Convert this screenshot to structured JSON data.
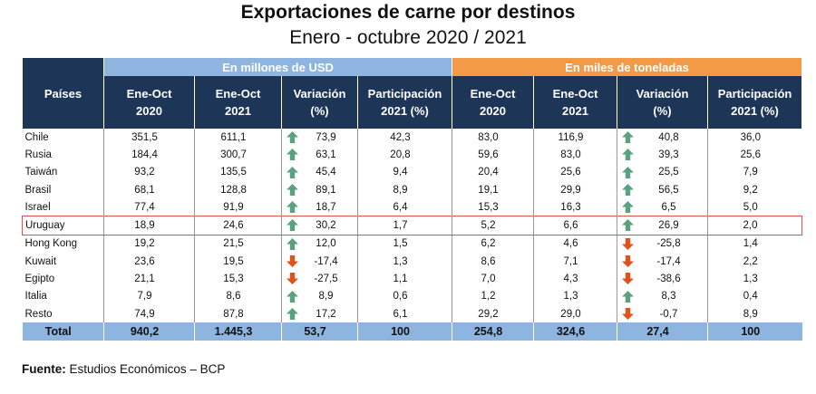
{
  "title": "Exportaciones de carne por destinos",
  "subtitle": "Enero - octubre 2020 / 2021",
  "table": {
    "row_header": "Países",
    "group_usd": "En millones de USD",
    "group_ton": "En miles de toneladas",
    "columns": [
      {
        "line1": "Ene-Oct",
        "line2": "2020"
      },
      {
        "line1": "Ene-Oct",
        "line2": "2021"
      },
      {
        "line1": "Variación",
        "line2": "(%)"
      },
      {
        "line1": "Participación",
        "line2": "2021 (%)"
      },
      {
        "line1": "Ene-Oct",
        "line2": "2020"
      },
      {
        "line1": "Ene-Oct",
        "line2": "2021"
      },
      {
        "line1": "Variación",
        "line2": "(%)"
      },
      {
        "line1": "Participación",
        "line2": "2021 (%)"
      }
    ],
    "rows": [
      {
        "country": "Chile",
        "usd_2020": "351,5",
        "usd_2021": "611,1",
        "usd_var": "73,9",
        "usd_var_dir": "up",
        "usd_part": "42,3",
        "ton_2020": "83,0",
        "ton_2021": "116,9",
        "ton_var": "40,8",
        "ton_var_dir": "up",
        "ton_part": "36,0"
      },
      {
        "country": "Rusia",
        "usd_2020": "184,4",
        "usd_2021": "300,7",
        "usd_var": "63,1",
        "usd_var_dir": "up",
        "usd_part": "20,8",
        "ton_2020": "59,6",
        "ton_2021": "83,0",
        "ton_var": "39,3",
        "ton_var_dir": "up",
        "ton_part": "25,6"
      },
      {
        "country": "Taiwán",
        "usd_2020": "93,2",
        "usd_2021": "135,5",
        "usd_var": "45,4",
        "usd_var_dir": "up",
        "usd_part": "9,4",
        "ton_2020": "20,4",
        "ton_2021": "25,6",
        "ton_var": "25,5",
        "ton_var_dir": "up",
        "ton_part": "7,9"
      },
      {
        "country": "Brasil",
        "usd_2020": "68,1",
        "usd_2021": "128,8",
        "usd_var": "89,1",
        "usd_var_dir": "up",
        "usd_part": "8,9",
        "ton_2020": "19,1",
        "ton_2021": "29,9",
        "ton_var": "56,5",
        "ton_var_dir": "up",
        "ton_part": "9,2"
      },
      {
        "country": "Israel",
        "usd_2020": "77,4",
        "usd_2021": "91,9",
        "usd_var": "18,7",
        "usd_var_dir": "up",
        "usd_part": "6,4",
        "ton_2020": "15,3",
        "ton_2021": "16,3",
        "ton_var": "6,5",
        "ton_var_dir": "up",
        "ton_part": "5,0"
      },
      {
        "country": "Uruguay",
        "usd_2020": "18,9",
        "usd_2021": "24,6",
        "usd_var": "30,2",
        "usd_var_dir": "up",
        "usd_part": "1,7",
        "ton_2020": "5,2",
        "ton_2021": "6,6",
        "ton_var": "26,9",
        "ton_var_dir": "up",
        "ton_part": "2,0",
        "highlight": true
      },
      {
        "country": "Hong Kong",
        "usd_2020": "19,2",
        "usd_2021": "21,5",
        "usd_var": "12,0",
        "usd_var_dir": "up",
        "usd_part": "1,5",
        "ton_2020": "6,2",
        "ton_2021": "4,6",
        "ton_var": "-25,8",
        "ton_var_dir": "down",
        "ton_part": "1,4"
      },
      {
        "country": "Kuwait",
        "usd_2020": "23,6",
        "usd_2021": "19,5",
        "usd_var": "-17,4",
        "usd_var_dir": "down",
        "usd_part": "1,3",
        "ton_2020": "8,6",
        "ton_2021": "7,1",
        "ton_var": "-17,4",
        "ton_var_dir": "down",
        "ton_part": "2,2"
      },
      {
        "country": "Egipto",
        "usd_2020": "21,1",
        "usd_2021": "15,3",
        "usd_var": "-27,5",
        "usd_var_dir": "down",
        "usd_part": "1,1",
        "ton_2020": "7,0",
        "ton_2021": "4,3",
        "ton_var": "-38,6",
        "ton_var_dir": "down",
        "ton_part": "1,3"
      },
      {
        "country": "Italia",
        "usd_2020": "7,9",
        "usd_2021": "8,6",
        "usd_var": "8,9",
        "usd_var_dir": "up",
        "usd_part": "0,6",
        "ton_2020": "1,2",
        "ton_2021": "1,3",
        "ton_var": "8,3",
        "ton_var_dir": "up",
        "ton_part": "0,4"
      },
      {
        "country": "Resto",
        "usd_2020": "74,9",
        "usd_2021": "87,8",
        "usd_var": "17,2",
        "usd_var_dir": "up",
        "usd_part": "6,1",
        "ton_2020": "29,2",
        "ton_2021": "29,0",
        "ton_var": "-0,7",
        "ton_var_dir": "down",
        "ton_part": "8,9"
      }
    ],
    "total": {
      "label": "Total",
      "usd_2020": "940,2",
      "usd_2021": "1.445,3",
      "usd_var": "53,7",
      "usd_part": "100",
      "ton_2020": "254,8",
      "ton_2021": "324,6",
      "ton_var": "27,4",
      "ton_part": "100"
    }
  },
  "source_label": "Fuente:",
  "source_text": "Estudios Económicos – BCP",
  "colors": {
    "header_navy": "#1d3557",
    "usd_blue": "#8db5df",
    "ton_orange": "#f29a45",
    "arrow_up": "#5aa17f",
    "arrow_down": "#e0521c",
    "highlight_border": "#d9534f"
  }
}
